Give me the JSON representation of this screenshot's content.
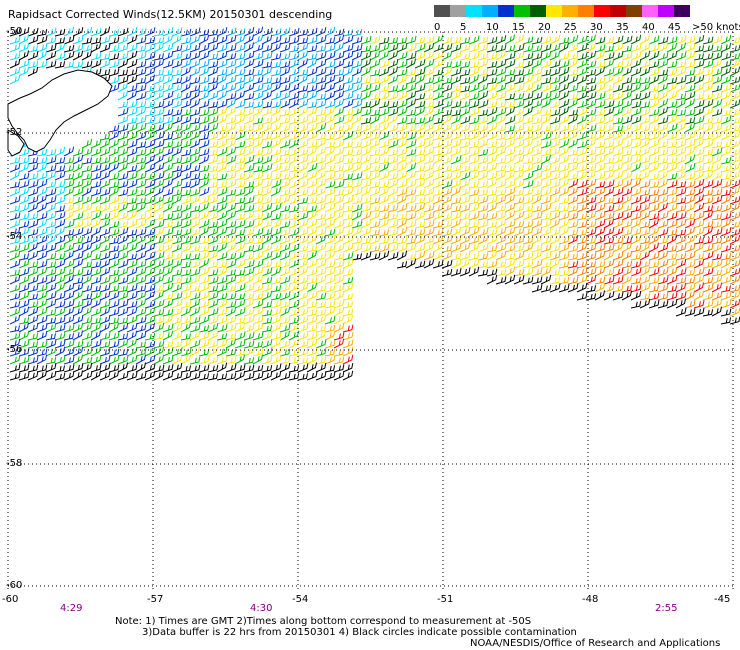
{
  "title": "Rapidsact Corrected Winds(12.5KM) 20150301 descending",
  "legend": {
    "labels": [
      "0",
      "5",
      "10",
      "15",
      "20",
      "25",
      "30",
      "35",
      "40",
      "45",
      ">50 knots"
    ],
    "colors": [
      "#505050",
      "#a0a0a0",
      "#00e0ff",
      "#00b0ff",
      "#0030d0",
      "#00c000",
      "#006000",
      "#ffe800",
      "#ffb000",
      "#ff8000",
      "#ff0000",
      "#c00000",
      "#804000",
      "#ff60ff",
      "#c000ff",
      "#400060"
    ]
  },
  "lat_labels": [
    "-50",
    "-52",
    "-54",
    "-56",
    "-58",
    "-60"
  ],
  "lon_labels": [
    "-60",
    "-57",
    "-54",
    "-51",
    "-48",
    "-45"
  ],
  "time_labels": [
    "4:29",
    "4:30",
    "2:55"
  ],
  "notes": [
    "Note: 1) Times are GMT 2)Times along bottom correspond to measurement at -50S",
    "3)Data buffer is 22 hrs from 20150301 4) Black circles indicate possible contamination",
    "NOAA/NESDIS/Office of Research and Applications"
  ]
}
